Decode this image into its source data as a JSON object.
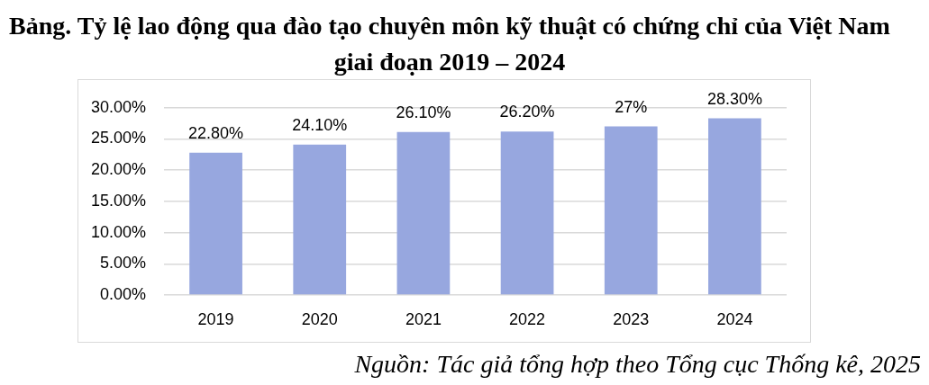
{
  "chart_data": {
    "type": "bar",
    "title": "Bảng. Tỷ lệ lao động qua đào tạo chuyên môn kỹ thuật có chứng chỉ của Việt Nam giai đoạn 2019 – 2024",
    "categories": [
      "2019",
      "2020",
      "2021",
      "2022",
      "2023",
      "2024"
    ],
    "values": [
      22.8,
      24.1,
      26.1,
      26.2,
      27,
      28.3
    ],
    "value_labels": [
      "22.80%",
      "24.10%",
      "26.10%",
      "26.20%",
      "27%",
      "28.30%"
    ],
    "color": "#97a7df",
    "ylim": [
      0,
      30
    ],
    "yticks": [
      {
        "value": 0,
        "label": "0.00%"
      },
      {
        "value": 5,
        "label": "5.00%"
      },
      {
        "value": 10,
        "label": "10.00%"
      },
      {
        "value": 15,
        "label": "15.00%"
      },
      {
        "value": 20,
        "label": "20.00%"
      },
      {
        "value": 25,
        "label": "25.00%"
      },
      {
        "value": 30,
        "label": "30.00%"
      }
    ],
    "grid": "y",
    "annotations": [
      "Nguồn: Tác giả tổng hợp theo Tổng cục Thống kê, 2025"
    ]
  }
}
